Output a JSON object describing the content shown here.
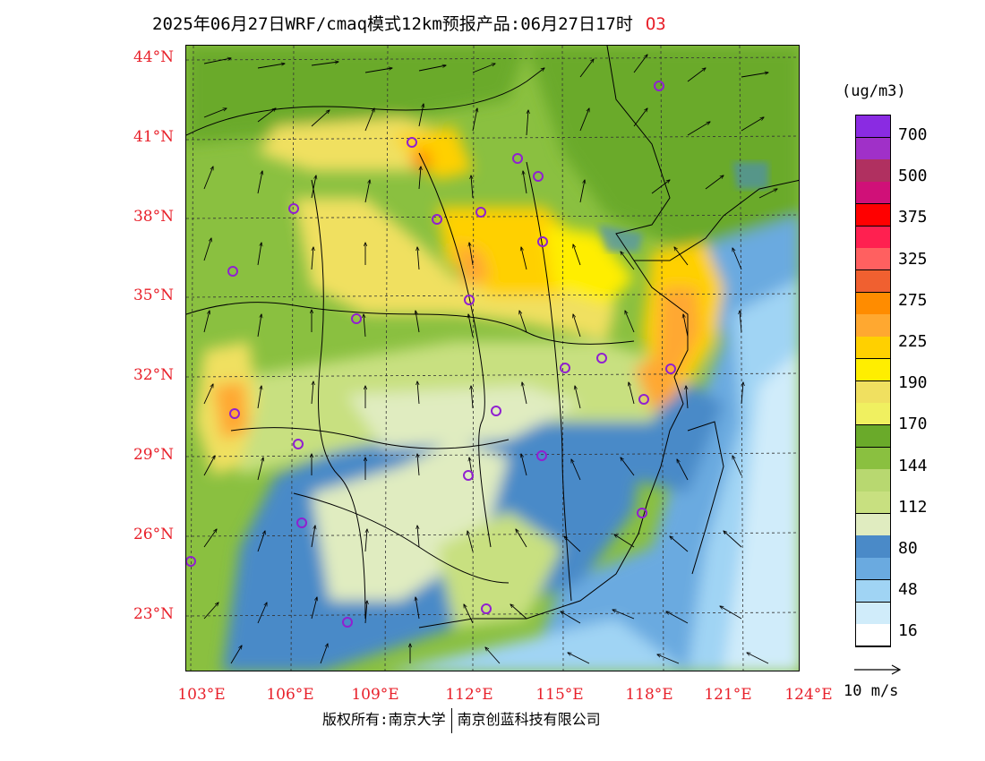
{
  "title": "2025年06月27日WRF/cmaq模式12km预报产品:06月27日17时",
  "species": "O3",
  "units": "(ug/m3)",
  "lat_labels": [
    "44°N",
    "41°N",
    "38°N",
    "35°N",
    "32°N",
    "29°N",
    "26°N",
    "23°N"
  ],
  "lon_labels": [
    "103°E",
    "106°E",
    "109°E",
    "112°E",
    "115°E",
    "118°E",
    "121°E",
    "124°E"
  ],
  "colorbar": {
    "labels": [
      "700",
      "500",
      "375",
      "325",
      "275",
      "225",
      "190",
      "170",
      "144",
      "112",
      "80",
      "48",
      "16"
    ],
    "colors": [
      "#8a2be2",
      "#a030c8",
      "#b03060",
      "#d01078",
      "#ff0000",
      "#ff2050",
      "#ff6060",
      "#f06030",
      "#ff8c00",
      "#ffa830",
      "#ffd000",
      "#ffee00",
      "#f0e060",
      "#f0f060",
      "#6aaa2a",
      "#8ac040",
      "#b8d870",
      "#c8e080",
      "#e0ecc0",
      "#4a8ac8",
      "#6aaae0",
      "#a0d4f4",
      "#d0ecfa",
      "#ffffff"
    ]
  },
  "wind_reference": "10 m/s",
  "copyright": {
    "left": "版权所有:南京大学",
    "right": "南京创蓝科技有限公司"
  }
}
